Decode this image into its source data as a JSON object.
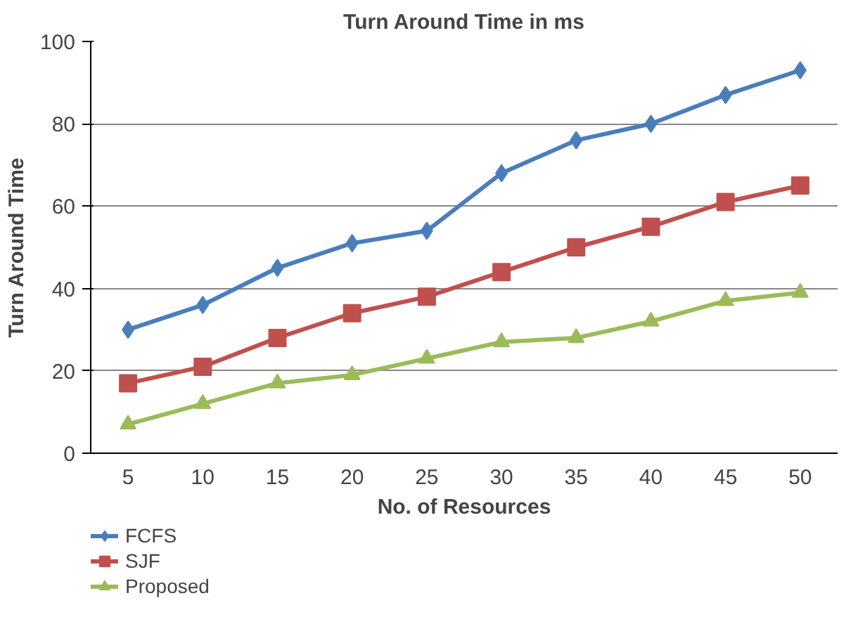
{
  "chart_data": {
    "type": "line",
    "title": "Turn Around Time in ms",
    "xlabel": "No. of Resources",
    "ylabel": "Turn Around Time",
    "categories": [
      "5",
      "10",
      "15",
      "20",
      "25",
      "30",
      "35",
      "40",
      "45",
      "50"
    ],
    "series": [
      {
        "name": "FCFS",
        "color": "#4a7ebb",
        "marker": "diamond",
        "values": [
          30,
          36,
          45,
          51,
          54,
          68,
          76,
          80,
          87,
          93
        ]
      },
      {
        "name": "SJF",
        "color": "#c0504d",
        "marker": "square",
        "values": [
          17,
          21,
          28,
          34,
          38,
          44,
          50,
          55,
          61,
          65
        ]
      },
      {
        "name": "Proposed",
        "color": "#9bbb59",
        "marker": "triangle",
        "values": [
          7,
          12,
          17,
          19,
          23,
          27,
          28,
          32,
          37,
          39
        ]
      }
    ],
    "ylim": [
      0,
      100
    ],
    "yticks": [
      0,
      20,
      40,
      60,
      80,
      100
    ],
    "grid": "y",
    "legend": "bottom left"
  }
}
